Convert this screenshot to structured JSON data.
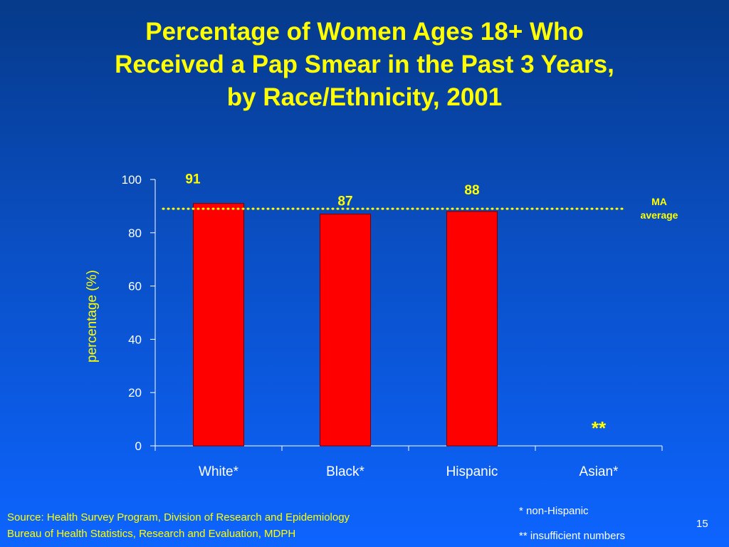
{
  "slide": {
    "title_lines": [
      "Percentage of Women Ages 18+ Who",
      "Received a Pap Smear in the Past 3 Years,",
      "by Race/Ethnicity, 2001"
    ],
    "footnotes": [
      "* non-Hispanic",
      "** insufficient numbers"
    ],
    "source_lines": [
      "Source: Health Survey Program, Division of Research and Epidemiology",
      "Bureau of Health Statistics, Research and Evaluation, MDPH"
    ],
    "page_number": "15"
  },
  "chart_data": {
    "type": "bar",
    "title": "Percentage of Women Ages 18+ Who Received a Pap Smear in the Past 3 Years, by Race/Ethnicity, 2001",
    "xlabel": "",
    "ylabel": "percentage (%)",
    "ylim": [
      0,
      100
    ],
    "yticks": [
      0,
      20,
      40,
      60,
      80,
      100
    ],
    "grid": false,
    "categories": [
      "White*",
      "Black*",
      "Hispanic",
      "Asian*"
    ],
    "values": [
      91,
      87,
      88,
      null
    ],
    "data_labels": [
      "91",
      "87",
      "88",
      "**"
    ],
    "reference_line": {
      "label": "MA average",
      "value": 89,
      "style": "dotted"
    },
    "colors": {
      "bar": "#ff0000",
      "bar_border": "#7a0000",
      "labels": "#ffff00",
      "axis": "#ffffff"
    }
  }
}
